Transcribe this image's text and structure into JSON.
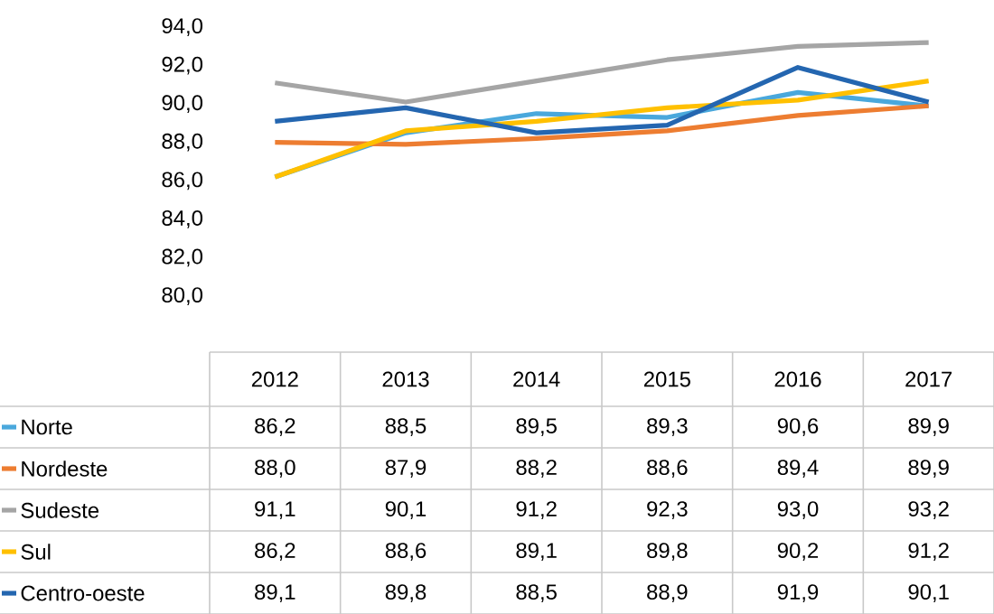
{
  "chart_data": {
    "type": "line",
    "categories": [
      "2012",
      "2013",
      "2014",
      "2015",
      "2016",
      "2017"
    ],
    "series": [
      {
        "name": "Norte",
        "color": "#4aa8dc",
        "values": [
          86.2,
          88.5,
          89.5,
          89.3,
          90.6,
          89.9
        ],
        "value_labels": [
          "86,2",
          "88,5",
          "89,5",
          "89,3",
          "90,6",
          "89,9"
        ]
      },
      {
        "name": "Nordeste",
        "color": "#ed7d31",
        "values": [
          88.0,
          87.9,
          88.2,
          88.6,
          89.4,
          89.9
        ],
        "value_labels": [
          "88,0",
          "87,9",
          "88,2",
          "88,6",
          "89,4",
          "89,9"
        ]
      },
      {
        "name": "Sudeste",
        "color": "#a5a5a5",
        "values": [
          91.1,
          90.1,
          91.2,
          92.3,
          93.0,
          93.2
        ],
        "value_labels": [
          "91,1",
          "90,1",
          "91,2",
          "92,3",
          "93,0",
          "93,2"
        ]
      },
      {
        "name": "Sul",
        "color": "#ffc000",
        "values": [
          86.2,
          88.6,
          89.1,
          89.8,
          90.2,
          91.2
        ],
        "value_labels": [
          "86,2",
          "88,6",
          "89,1",
          "89,8",
          "90,2",
          "91,2"
        ]
      },
      {
        "name": "Centro-oeste",
        "color": "#2466b0",
        "values": [
          89.1,
          89.8,
          88.5,
          88.9,
          91.9,
          90.1
        ],
        "value_labels": [
          "89,1",
          "89,8",
          "88,5",
          "88,9",
          "91,9",
          "90,1"
        ]
      }
    ],
    "ylim": [
      80,
      94
    ],
    "yticks": [
      {
        "value": 80,
        "label": "80,0"
      },
      {
        "value": 82,
        "label": "82,0"
      },
      {
        "value": 84,
        "label": "84,0"
      },
      {
        "value": 86,
        "label": "86,0"
      },
      {
        "value": 88,
        "label": "88,0"
      },
      {
        "value": 90,
        "label": "90,0"
      },
      {
        "value": 92,
        "label": "92,0"
      },
      {
        "value": 94,
        "label": "94,0"
      }
    ],
    "tick_labels": "y",
    "grid": false,
    "legend": "bottom left",
    "marker": "none",
    "line_style": "solid"
  }
}
